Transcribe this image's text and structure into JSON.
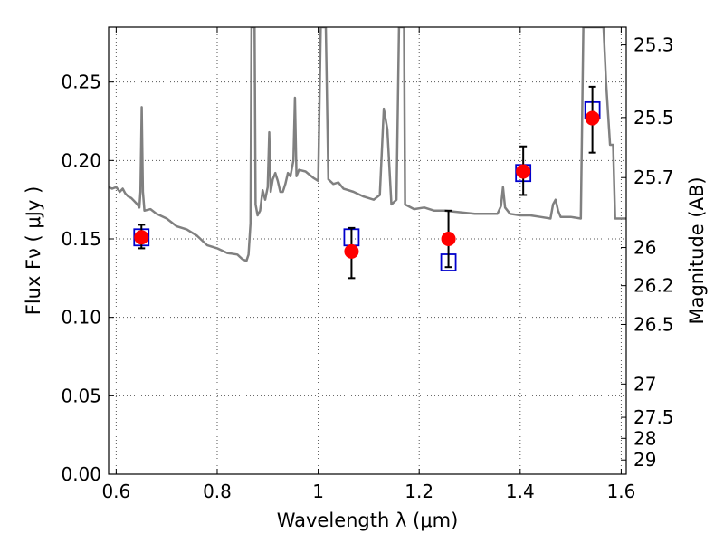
{
  "chart_data": {
    "type": "scatter",
    "xlabel": "Wavelength  λ (μm)",
    "ylabel": "Flux  Fν  ( μJy )",
    "ylabel_right": "Magnitude (AB)",
    "xlim": [
      0.585,
      1.61
    ],
    "ylim": [
      0.0,
      0.285
    ],
    "grid": true,
    "x_ticks": [
      {
        "value": 0.6,
        "label": "0.6"
      },
      {
        "value": 0.8,
        "label": "0.8"
      },
      {
        "value": 1.0,
        "label": "1"
      },
      {
        "value": 1.2,
        "label": "1.2"
      },
      {
        "value": 1.4,
        "label": "1.4"
      },
      {
        "value": 1.6,
        "label": "1.6"
      }
    ],
    "y_ticks": [
      {
        "value": 0.0,
        "label": "0.00"
      },
      {
        "value": 0.05,
        "label": "0.05"
      },
      {
        "value": 0.1,
        "label": "0.10"
      },
      {
        "value": 0.15,
        "label": "0.15"
      },
      {
        "value": 0.2,
        "label": "0.20"
      },
      {
        "value": 0.25,
        "label": "0.25"
      }
    ],
    "y_right_ticks": [
      {
        "flux": 0.2737,
        "label": "25.3"
      },
      {
        "flux": 0.2274,
        "label": "25.5"
      },
      {
        "flux": 0.1891,
        "label": "25.7"
      },
      {
        "flux": 0.1445,
        "label": "26"
      },
      {
        "flux": 0.1202,
        "label": "26.2"
      },
      {
        "flux": 0.0955,
        "label": "26.5"
      },
      {
        "flux": 0.0575,
        "label": "27"
      },
      {
        "flux": 0.0363,
        "label": "27.5"
      },
      {
        "flux": 0.0229,
        "label": "28"
      },
      {
        "flux": 0.0091,
        "label": "29"
      }
    ],
    "colors": {
      "model": "#808080",
      "observed": "#ff0000",
      "model_box": "#0000cc",
      "error_bar": "#000000",
      "grid": "#555555"
    },
    "series": [
      {
        "kind": "line",
        "points": [
          [
            0.585,
            0.183
          ],
          [
            0.592,
            0.182
          ],
          [
            0.6,
            0.183
          ],
          [
            0.607,
            0.18
          ],
          [
            0.613,
            0.182
          ],
          [
            0.618,
            0.179
          ],
          [
            0.624,
            0.177
          ],
          [
            0.63,
            0.176
          ],
          [
            0.636,
            0.174
          ],
          [
            0.642,
            0.172
          ],
          [
            0.646,
            0.17
          ],
          [
            0.648,
            0.18
          ],
          [
            0.6505,
            0.234
          ],
          [
            0.653,
            0.18
          ],
          [
            0.656,
            0.168
          ],
          [
            0.668,
            0.169
          ],
          [
            0.68,
            0.166
          ],
          [
            0.7,
            0.163
          ],
          [
            0.72,
            0.158
          ],
          [
            0.74,
            0.156
          ],
          [
            0.76,
            0.152
          ],
          [
            0.78,
            0.146
          ],
          [
            0.8,
            0.144
          ],
          [
            0.82,
            0.141
          ],
          [
            0.84,
            0.14
          ],
          [
            0.85,
            0.137
          ],
          [
            0.858,
            0.136
          ],
          [
            0.862,
            0.14
          ],
          [
            0.866,
            0.16
          ],
          [
            0.868,
            0.285
          ],
          [
            0.874,
            0.285
          ],
          [
            0.876,
            0.172
          ],
          [
            0.88,
            0.165
          ],
          [
            0.885,
            0.168
          ],
          [
            0.89,
            0.181
          ],
          [
            0.895,
            0.175
          ],
          [
            0.9,
            0.183
          ],
          [
            0.903,
            0.218
          ],
          [
            0.906,
            0.18
          ],
          [
            0.91,
            0.188
          ],
          [
            0.915,
            0.192
          ],
          [
            0.92,
            0.187
          ],
          [
            0.925,
            0.18
          ],
          [
            0.93,
            0.18
          ],
          [
            0.935,
            0.185
          ],
          [
            0.94,
            0.192
          ],
          [
            0.945,
            0.19
          ],
          [
            0.951,
            0.2
          ],
          [
            0.954,
            0.24
          ],
          [
            0.957,
            0.19
          ],
          [
            0.962,
            0.194
          ],
          [
            0.975,
            0.193
          ],
          [
            0.99,
            0.189
          ],
          [
            1.0,
            0.187
          ],
          [
            1.005,
            0.285
          ],
          [
            1.015,
            0.285
          ],
          [
            1.02,
            0.188
          ],
          [
            1.03,
            0.185
          ],
          [
            1.04,
            0.186
          ],
          [
            1.05,
            0.182
          ],
          [
            1.07,
            0.18
          ],
          [
            1.09,
            0.177
          ],
          [
            1.11,
            0.175
          ],
          [
            1.122,
            0.178
          ],
          [
            1.13,
            0.233
          ],
          [
            1.137,
            0.22
          ],
          [
            1.145,
            0.172
          ],
          [
            1.155,
            0.175
          ],
          [
            1.16,
            0.285
          ],
          [
            1.17,
            0.285
          ],
          [
            1.172,
            0.172
          ],
          [
            1.19,
            0.169
          ],
          [
            1.21,
            0.17
          ],
          [
            1.23,
            0.168
          ],
          [
            1.25,
            0.168
          ],
          [
            1.28,
            0.167
          ],
          [
            1.31,
            0.166
          ],
          [
            1.34,
            0.166
          ],
          [
            1.355,
            0.166
          ],
          [
            1.362,
            0.171
          ],
          [
            1.366,
            0.183
          ],
          [
            1.37,
            0.17
          ],
          [
            1.38,
            0.166
          ],
          [
            1.4,
            0.165
          ],
          [
            1.42,
            0.165
          ],
          [
            1.44,
            0.164
          ],
          [
            1.46,
            0.163
          ],
          [
            1.465,
            0.172
          ],
          [
            1.47,
            0.175
          ],
          [
            1.475,
            0.168
          ],
          [
            1.48,
            0.164
          ],
          [
            1.5,
            0.164
          ],
          [
            1.52,
            0.163
          ],
          [
            1.525,
            0.285
          ],
          [
            1.535,
            0.285
          ],
          [
            1.55,
            0.285
          ],
          [
            1.565,
            0.285
          ],
          [
            1.57,
            0.25
          ],
          [
            1.578,
            0.21
          ],
          [
            1.584,
            0.21
          ],
          [
            1.588,
            0.163
          ],
          [
            1.6,
            0.163
          ],
          [
            1.61,
            0.163
          ]
        ]
      },
      {
        "kind": "model_photometry",
        "points": [
          {
            "x": 0.65,
            "y": 0.151
          },
          {
            "x": 1.066,
            "y": 0.151
          },
          {
            "x": 1.258,
            "y": 0.135
          },
          {
            "x": 1.406,
            "y": 0.192
          },
          {
            "x": 1.543,
            "y": 0.232
          }
        ]
      },
      {
        "kind": "observed_photometry",
        "points": [
          {
            "x": 0.65,
            "y": 0.151,
            "yerr_low": 0.144,
            "yerr_high": 0.159
          },
          {
            "x": 1.066,
            "y": 0.142,
            "yerr_low": 0.125,
            "yerr_high": 0.157
          },
          {
            "x": 1.258,
            "y": 0.15,
            "yerr_low": 0.132,
            "yerr_high": 0.168
          },
          {
            "x": 1.406,
            "y": 0.193,
            "yerr_low": 0.178,
            "yerr_high": 0.209
          },
          {
            "x": 1.543,
            "y": 0.227,
            "yerr_low": 0.205,
            "yerr_high": 0.247
          }
        ]
      }
    ]
  }
}
